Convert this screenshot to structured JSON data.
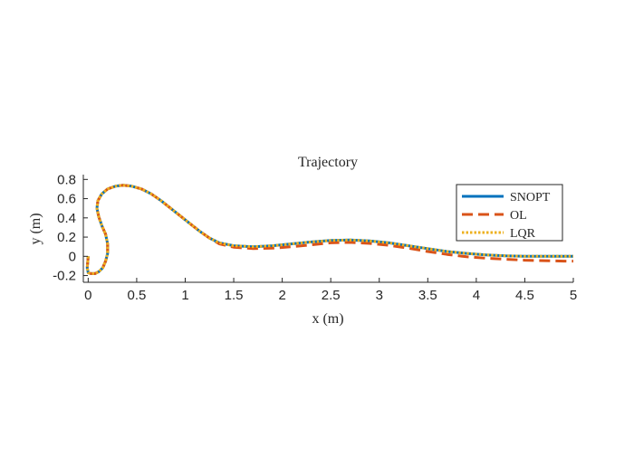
{
  "chart_data": {
    "type": "line",
    "title": "Trajectory",
    "xlabel": "x (m)",
    "ylabel": "y (m)",
    "xlim": [
      -0.05,
      5
    ],
    "ylim": [
      -0.27,
      0.85
    ],
    "xticks": [
      0,
      0.5,
      1,
      1.5,
      2,
      2.5,
      3,
      3.5,
      4,
      4.5,
      5
    ],
    "xtick_labels": [
      "0",
      "0.5",
      "1",
      "1.5",
      "2",
      "2.5",
      "3",
      "3.5",
      "4",
      "4.5",
      "5"
    ],
    "yticks": [
      -0.2,
      0,
      0.2,
      0.4,
      0.6,
      0.8
    ],
    "ytick_labels": [
      "-0.2",
      "0",
      "0.2",
      "0.4",
      "0.6",
      "0.8"
    ],
    "grid": false,
    "legend_position": "top-right",
    "series": [
      {
        "name": "SNOPT",
        "color": "#0072BD",
        "style": "solid",
        "x": [
          0,
          -0.01,
          0,
          0.03,
          0.07,
          0.11,
          0.15,
          0.18,
          0.2,
          0.2,
          0.18,
          0.14,
          0.11,
          0.09,
          0.1,
          0.14,
          0.2,
          0.28,
          0.36,
          0.45,
          0.55,
          0.65,
          0.75,
          0.85,
          0.95,
          1.05,
          1.15,
          1.25,
          1.35,
          1.5,
          1.7,
          1.9,
          2.1,
          2.3,
          2.5,
          2.7,
          2.9,
          3.1,
          3.3,
          3.5,
          3.7,
          3.9,
          4.1,
          4.3,
          4.5,
          4.7,
          4.9,
          5.0
        ],
        "y": [
          0,
          -0.12,
          -0.17,
          -0.18,
          -0.18,
          -0.16,
          -0.12,
          -0.05,
          0.03,
          0.13,
          0.23,
          0.32,
          0.41,
          0.5,
          0.58,
          0.65,
          0.7,
          0.73,
          0.74,
          0.73,
          0.7,
          0.65,
          0.58,
          0.5,
          0.42,
          0.34,
          0.26,
          0.19,
          0.14,
          0.11,
          0.1,
          0.11,
          0.13,
          0.15,
          0.165,
          0.17,
          0.16,
          0.14,
          0.11,
          0.08,
          0.05,
          0.03,
          0.015,
          0.005,
          0.0,
          0.0,
          0.0,
          0.0
        ]
      },
      {
        "name": "OL",
        "color": "#D95319",
        "style": "dashed",
        "x": [
          0,
          -0.01,
          0,
          0.03,
          0.07,
          0.11,
          0.15,
          0.18,
          0.2,
          0.2,
          0.18,
          0.14,
          0.11,
          0.09,
          0.1,
          0.14,
          0.2,
          0.28,
          0.36,
          0.45,
          0.55,
          0.65,
          0.75,
          0.85,
          0.95,
          1.05,
          1.15,
          1.25,
          1.35,
          1.5,
          1.7,
          1.9,
          2.1,
          2.3,
          2.5,
          2.7,
          2.9,
          3.1,
          3.3,
          3.5,
          3.7,
          3.9,
          4.1,
          4.3,
          4.5,
          4.7,
          4.9,
          5.0
        ],
        "y": [
          0,
          -0.12,
          -0.17,
          -0.18,
          -0.18,
          -0.16,
          -0.12,
          -0.05,
          0.03,
          0.13,
          0.23,
          0.32,
          0.41,
          0.5,
          0.58,
          0.65,
          0.7,
          0.73,
          0.74,
          0.73,
          0.7,
          0.65,
          0.58,
          0.5,
          0.42,
          0.34,
          0.26,
          0.19,
          0.13,
          0.095,
          0.08,
          0.085,
          0.1,
          0.12,
          0.14,
          0.145,
          0.135,
          0.115,
          0.085,
          0.05,
          0.02,
          -0.005,
          -0.02,
          -0.03,
          -0.04,
          -0.045,
          -0.05,
          -0.05
        ]
      },
      {
        "name": "LQR",
        "color": "#EDB120",
        "style": "dotted",
        "x": [
          0,
          -0.01,
          0,
          0.03,
          0.07,
          0.11,
          0.15,
          0.18,
          0.2,
          0.2,
          0.18,
          0.14,
          0.11,
          0.09,
          0.1,
          0.14,
          0.2,
          0.28,
          0.36,
          0.45,
          0.55,
          0.65,
          0.75,
          0.85,
          0.95,
          1.05,
          1.15,
          1.25,
          1.35,
          1.5,
          1.7,
          1.9,
          2.1,
          2.3,
          2.5,
          2.7,
          2.9,
          3.1,
          3.3,
          3.5,
          3.7,
          3.9,
          4.1,
          4.3,
          4.5,
          4.7,
          4.9,
          5.0
        ],
        "y": [
          0,
          -0.12,
          -0.17,
          -0.18,
          -0.18,
          -0.16,
          -0.12,
          -0.05,
          0.03,
          0.13,
          0.23,
          0.32,
          0.41,
          0.5,
          0.58,
          0.65,
          0.7,
          0.73,
          0.74,
          0.73,
          0.7,
          0.65,
          0.58,
          0.5,
          0.42,
          0.34,
          0.26,
          0.19,
          0.14,
          0.11,
          0.1,
          0.11,
          0.13,
          0.15,
          0.165,
          0.17,
          0.16,
          0.14,
          0.11,
          0.08,
          0.05,
          0.03,
          0.015,
          0.005,
          0.0,
          0.0,
          0.0,
          0.0
        ]
      }
    ]
  }
}
